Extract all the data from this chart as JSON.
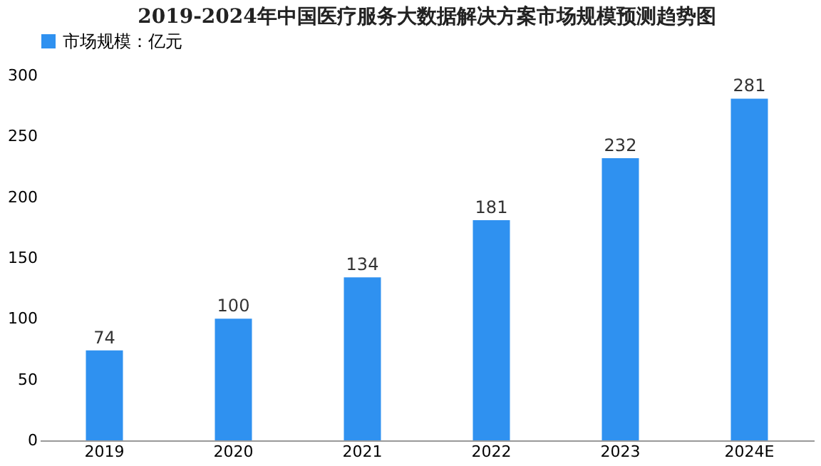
{
  "chart_data": {
    "type": "bar",
    "title": "2019-2024年中国医疗服务大数据解决方案市场规模预测趋势图",
    "categories": [
      "2019",
      "2020",
      "2021",
      "2022",
      "2023",
      "2024E"
    ],
    "series": [
      {
        "name": "市场规模：亿元",
        "color": "#2f91f0",
        "values": [
          74,
          100,
          134,
          181,
          232,
          281
        ]
      }
    ],
    "ylim": [
      0,
      300
    ],
    "yticks": [
      0,
      50,
      100,
      150,
      200,
      250,
      300
    ],
    "grid": false,
    "legend": "top",
    "data_labels": true
  }
}
